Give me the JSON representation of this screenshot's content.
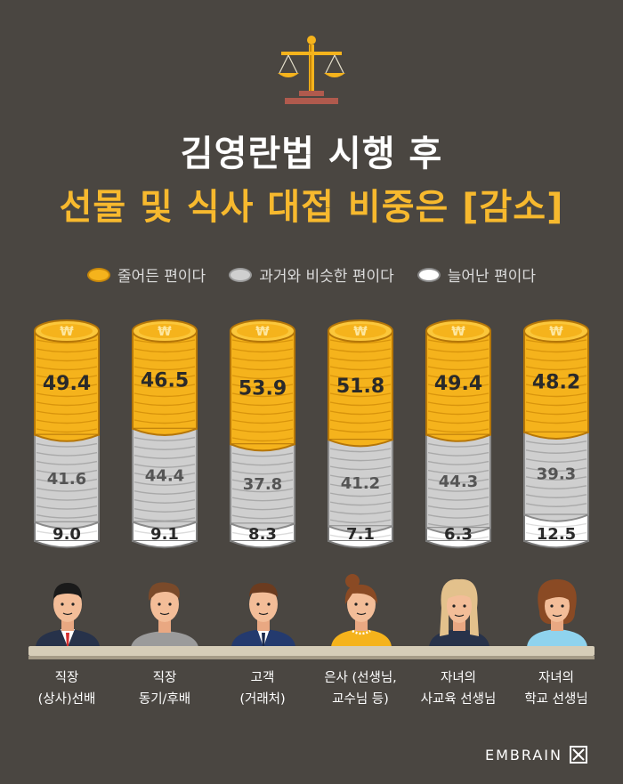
{
  "header": {
    "title_line1": "김영란법 시행 후",
    "title_line2": "선물 및 식사 대접 비중은 [감소]"
  },
  "legend": [
    {
      "label": "줄어든 편이다",
      "color": "#f5b31c"
    },
    {
      "label": "과거와 비슷한 편이다",
      "color": "#cfcfcf"
    },
    {
      "label": "늘어난 편이다",
      "color": "#ffffff"
    }
  ],
  "chart_data": {
    "type": "bar",
    "stacked": true,
    "categories": [
      "직장 (상사)선배",
      "직장 동기/후배",
      "고객 (거래처)",
      "은사 (선생님, 교수님 등)",
      "자녀의 사교육 선생님",
      "자녀의 학교 선생님"
    ],
    "category_lines": [
      [
        "직장",
        "(상사)선배"
      ],
      [
        "직장",
        "동기/후배"
      ],
      [
        "고객",
        "(거래처)"
      ],
      [
        "은사 (선생님,",
        "교수님 등)"
      ],
      [
        "자녀의",
        "사교육 선생님"
      ],
      [
        "자녀의",
        "학교 선생님"
      ]
    ],
    "series": [
      {
        "name": "줄어든 편이다",
        "values": [
          49.4,
          46.5,
          53.9,
          51.8,
          49.4,
          48.2
        ],
        "labels": [
          "49.4",
          "46.5",
          "53.9",
          "51.8",
          "49.4",
          "48.2"
        ],
        "color": "#f5b31c"
      },
      {
        "name": "과거와 비슷한 편이다",
        "values": [
          41.6,
          44.4,
          37.8,
          41.2,
          44.3,
          39.3
        ],
        "labels": [
          "41.6",
          "44.4",
          "37.8",
          "41.2",
          "44.3",
          "39.3"
        ],
        "color": "#cfcfcf"
      },
      {
        "name": "늘어난 편이다",
        "values": [
          9.0,
          9.1,
          8.3,
          7.1,
          6.3,
          12.5
        ],
        "labels": [
          "9.0",
          "9.1",
          "8.3",
          "7.1",
          "6.3",
          "12.5"
        ],
        "color": "#ffffff"
      }
    ],
    "coin_symbol": "₩"
  },
  "footer": {
    "brand": "EMBRAIN"
  }
}
